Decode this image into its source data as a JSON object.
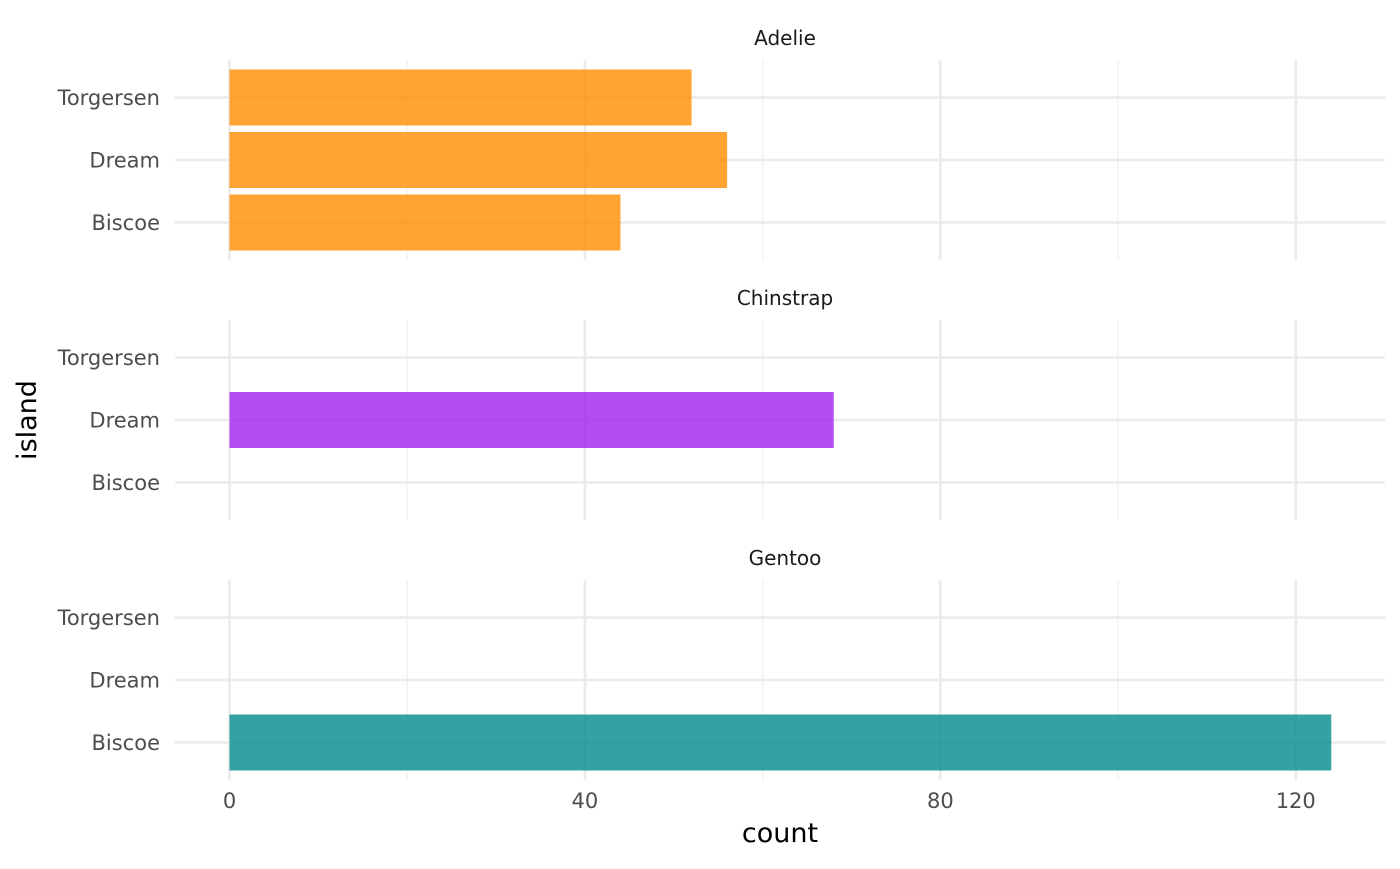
{
  "chart_data": {
    "type": "bar",
    "orientation": "horizontal",
    "facet_by": "species",
    "xlabel": "count",
    "ylabel": "island",
    "xlim": [
      0,
      124
    ],
    "x_ticks": [
      0,
      40,
      80,
      120
    ],
    "categories": [
      "Biscoe",
      "Dream",
      "Torgersen"
    ],
    "grid": true,
    "facets": [
      {
        "name": "Adelie",
        "color": "#FF8C00",
        "values": {
          "Biscoe": 44,
          "Dream": 56,
          "Torgersen": 52
        }
      },
      {
        "name": "Chinstrap",
        "color": "#A020F0",
        "values": {
          "Biscoe": 0,
          "Dream": 68,
          "Torgersen": 0
        }
      },
      {
        "name": "Gentoo",
        "color": "#008B8B",
        "values": {
          "Biscoe": 124,
          "Dream": 0,
          "Torgersen": 0
        }
      }
    ]
  }
}
